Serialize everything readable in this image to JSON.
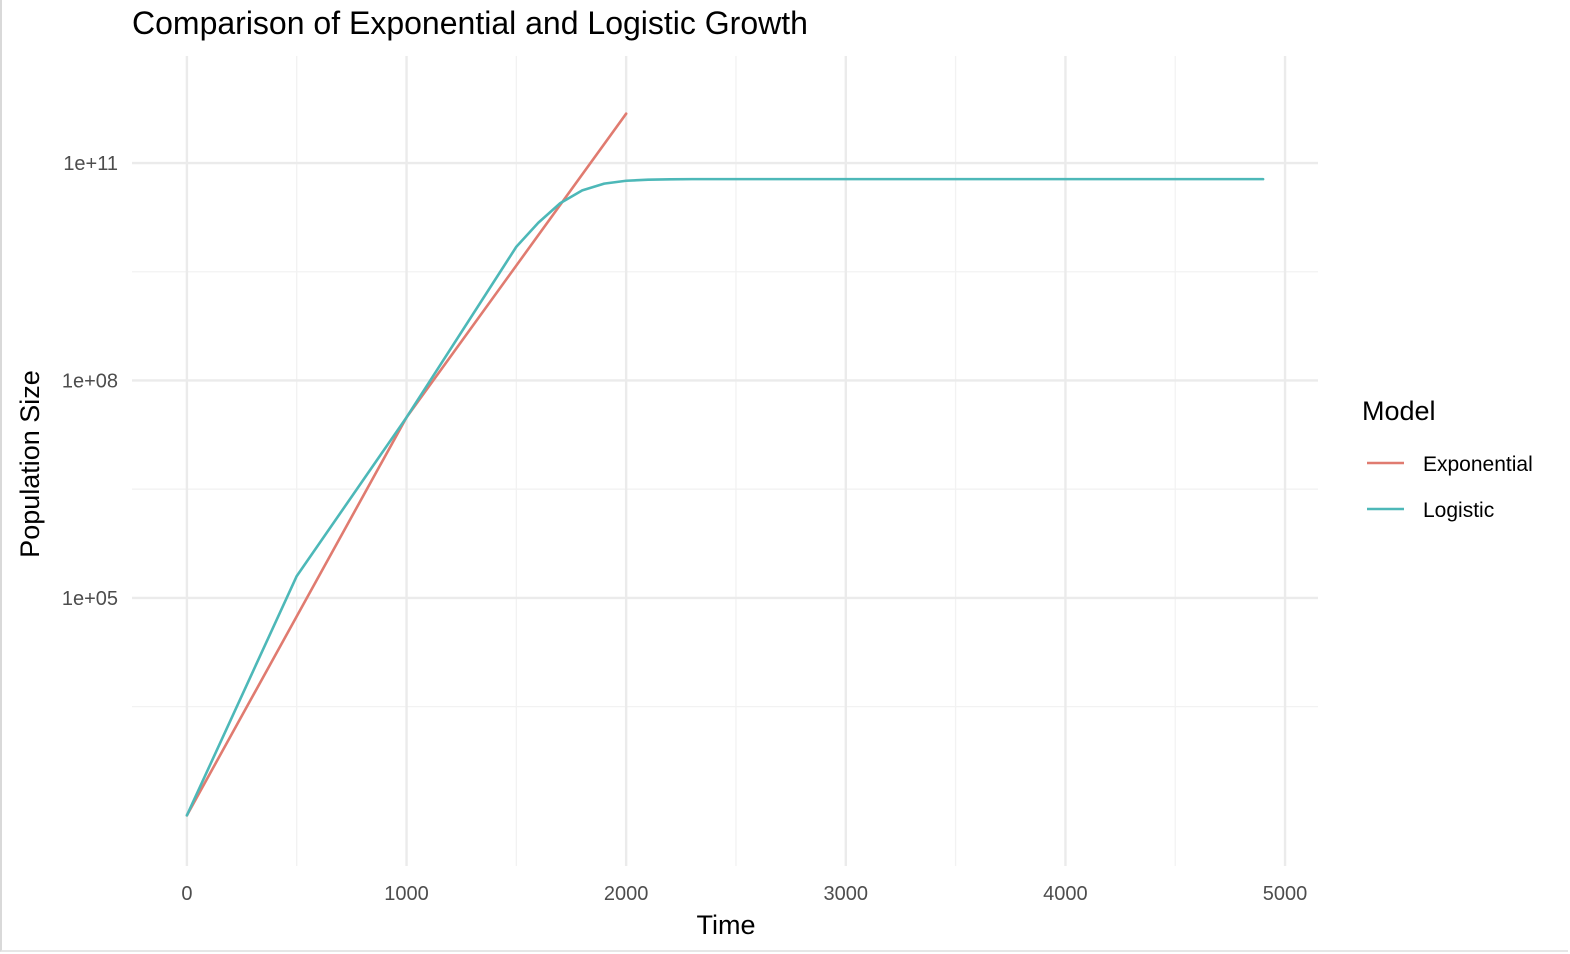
{
  "chart_data": {
    "type": "line",
    "title": "Comparison of Exponential and Logistic Growth",
    "xlabel": "Time",
    "ylabel": "Population Size",
    "xlim": [
      -250,
      5150
    ],
    "ylim": [
      20,
      3000000000000
    ],
    "yscale": "log10",
    "grid": true,
    "x_ticks": [
      0,
      1000,
      2000,
      3000,
      4000,
      5000
    ],
    "x_tick_labels": [
      "0",
      "1000",
      "2000",
      "3000",
      "4000",
      "5000"
    ],
    "y_ticks": [
      100000,
      100000000,
      100000000000
    ],
    "y_tick_labels": [
      "1e+05",
      "1e+08",
      "1e+11"
    ],
    "legend": {
      "title": "Model",
      "position": "right"
    },
    "series": [
      {
        "name": "Exponential",
        "color": "#e07b70",
        "x": [
          0,
          1000,
          2000
        ],
        "y": [
          100,
          31000000,
          480000000000
        ]
      },
      {
        "name": "Logistic",
        "color": "#4db8b8",
        "x": [
          0,
          500,
          1000,
          1500,
          1600,
          1700,
          1800,
          1900,
          2000,
          2100,
          2200,
          2300,
          2400,
          2600,
          3000,
          4000,
          4900
        ],
        "y": [
          100,
          200000,
          31000000,
          7000000000,
          15000000000,
          28000000000,
          42000000000,
          52000000000,
          57000000000,
          59000000000,
          59700000000,
          60000000000,
          60000000000,
          60000000000,
          60000000000,
          60000000000,
          60000000000
        ]
      }
    ]
  }
}
